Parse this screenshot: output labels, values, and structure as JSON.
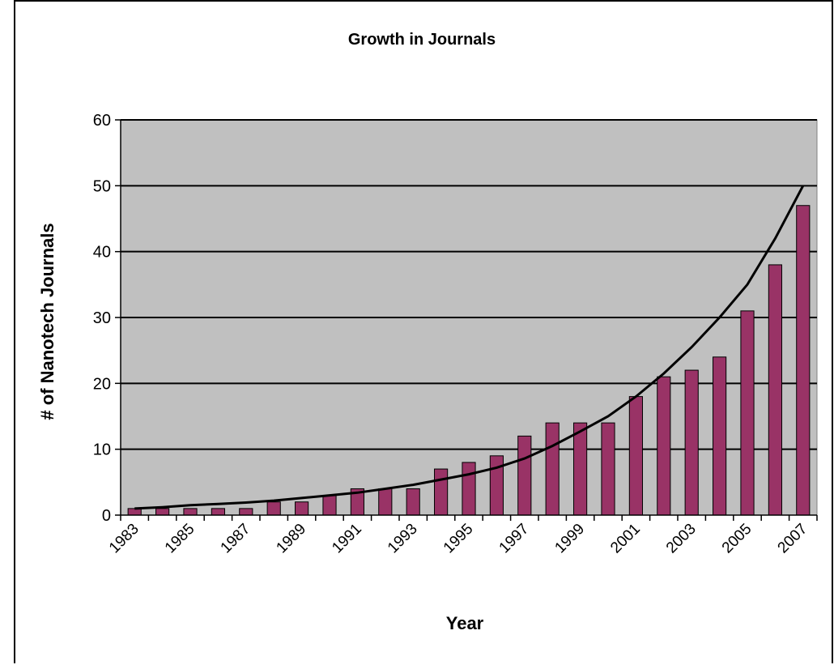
{
  "chart_data": {
    "type": "bar",
    "title": "Growth in Journals",
    "xlabel": "Year",
    "ylabel": "# of Nanotech Journals",
    "ylim": [
      0,
      60
    ],
    "yticks": [
      0,
      10,
      20,
      30,
      40,
      50,
      60
    ],
    "grid": true,
    "legend": "none",
    "categories": [
      "1983",
      "1984",
      "1985",
      "1986",
      "1987",
      "1988",
      "1989",
      "1990",
      "1991",
      "1992",
      "1993",
      "1994",
      "1995",
      "1996",
      "1997",
      "1998",
      "1999",
      "2000",
      "2001",
      "2002",
      "2003",
      "2004",
      "2005",
      "2006",
      "2007"
    ],
    "x_tick_labels": [
      "1983",
      "1985",
      "1987",
      "1989",
      "1991",
      "1993",
      "1995",
      "1997",
      "1999",
      "2001",
      "2003",
      "2005",
      "2007"
    ],
    "series": [
      {
        "values": [
          1,
          1,
          1,
          1,
          1,
          2,
          2,
          3,
          4,
          4,
          4,
          7,
          8,
          9,
          12,
          14,
          14,
          14,
          18,
          21,
          22,
          24,
          31,
          38,
          47
        ]
      }
    ],
    "trendline": {
      "type": "exponential",
      "values": [
        1.0,
        1.2,
        1.5,
        1.7,
        1.9,
        2.2,
        2.6,
        3.0,
        3.4,
        4.0,
        4.6,
        5.4,
        6.2,
        7.2,
        8.6,
        10.5,
        12.7,
        15.0,
        18.0,
        21.5,
        25.5,
        30.0,
        35.0,
        42.0,
        50.0
      ]
    },
    "colors": {
      "bar_fill": "#993366",
      "bar_stroke": "#000000",
      "plot_background": "#c0c0c0",
      "gridline": "#000000",
      "trendline": "#000000"
    }
  }
}
